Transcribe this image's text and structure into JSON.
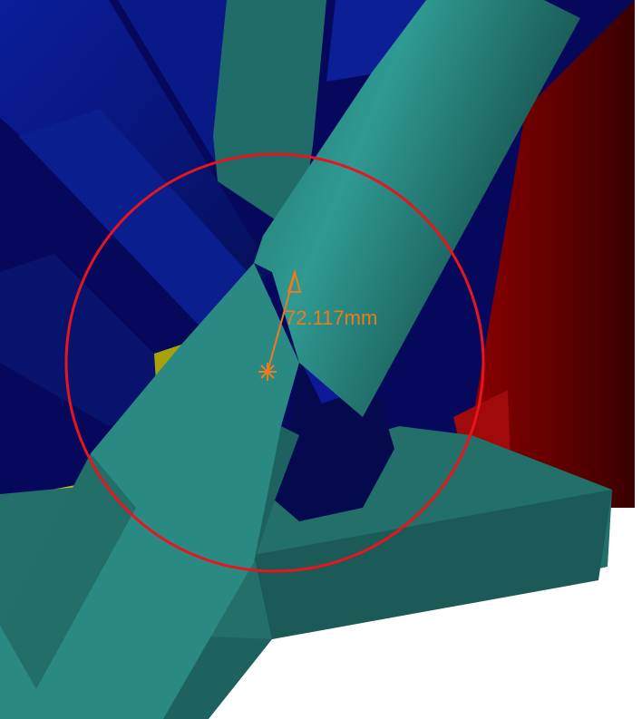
{
  "viewport": {
    "background": "#ffffff",
    "measurement": {
      "label": "72.117mm",
      "quantity": "diameter",
      "color": "#e87d1e",
      "circle_color": "#e8141e"
    },
    "parts": [
      {
        "name": "blue-frame-member",
        "color": "#0a1a8a"
      },
      {
        "name": "teal-tube",
        "color": "#2a8f88"
      },
      {
        "name": "teal-base-plate",
        "color": "#236f6a"
      },
      {
        "name": "red-plate",
        "color": "#7a0000"
      },
      {
        "name": "yellow-bracket",
        "color": "#a8a20a"
      }
    ]
  }
}
